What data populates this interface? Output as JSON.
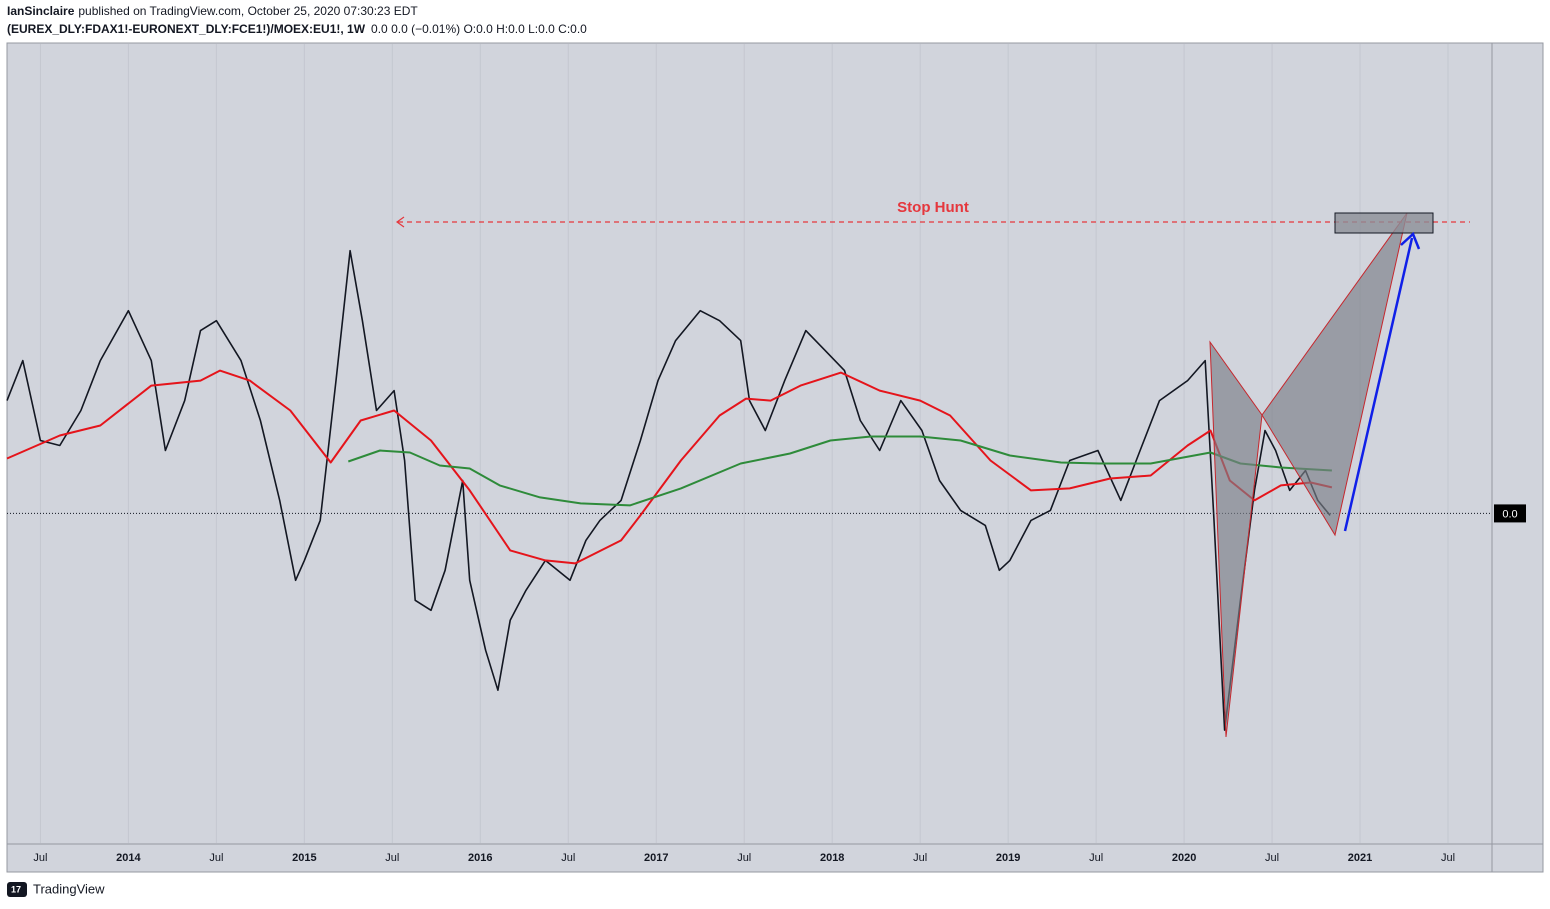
{
  "header": {
    "author": "IanSinclaire",
    "published": "published on TradingView.com, October 25, 2020 07:30:23 EDT",
    "symbol": "(EUREX_DLY:FDAX1!-EURONEXT_DLY:FCE1!)/MOEX:EU1!, 1W",
    "quote": "0.0 0.0 (−0.01%) O:0.0 H:0.0 L:0.0 C:0.0"
  },
  "footer": {
    "brand": "TradingView"
  },
  "chart_data": {
    "type": "line",
    "annotation": "Stop Hunt",
    "xlim": [
      2013.31,
      2021.75
    ],
    "xticks": [
      {
        "value": 2013.5,
        "label": "Jul"
      },
      2014,
      {
        "value": 2014.5,
        "label": "Jul"
      },
      2015,
      {
        "value": 2015.5,
        "label": "Jul"
      },
      2016,
      {
        "value": 2016.5,
        "label": "Jul"
      },
      2017,
      {
        "value": 2017.5,
        "label": "Jul"
      },
      2018,
      {
        "value": 2018.5,
        "label": "Jul"
      },
      2019,
      {
        "value": 2019.5,
        "label": "Jul"
      },
      2020,
      {
        "value": 2020.5,
        "label": "Jul"
      },
      2021,
      {
        "value": 2021.5,
        "label": "Jul"
      }
    ],
    "ylim": [
      -0.0165,
      0.0235
    ],
    "yticks": [
      {
        "value": 0,
        "label": "0.0"
      }
    ],
    "xgrid": true,
    "series": [
      {
        "color": "#131722",
        "width": 1.6,
        "x": [
          2013.31,
          2013.4,
          2013.5,
          2013.61,
          2013.73,
          2013.84,
          2014.0,
          2014.13,
          2014.21,
          2014.32,
          2014.41,
          2014.5,
          2014.64,
          2014.75,
          2014.86,
          2014.95,
          2015.0,
          2015.09,
          2015.18,
          2015.26,
          2015.33,
          2015.41,
          2015.51,
          2015.57,
          2015.63,
          2015.72,
          2015.8,
          2015.9,
          2015.94,
          2016.03,
          2016.1,
          2016.17,
          2016.26,
          2016.37,
          2016.51,
          2016.6,
          2016.68,
          2016.8,
          2016.91,
          2017.01,
          2017.11,
          2017.25,
          2017.36,
          2017.48,
          2017.53,
          2017.62,
          2017.73,
          2017.85,
          2017.96,
          2018.07,
          2018.16,
          2018.27,
          2018.39,
          2018.51,
          2018.61,
          2018.73,
          2018.87,
          2018.95,
          2019.01,
          2019.13,
          2019.24,
          2019.35,
          2019.51,
          2019.64,
          2019.75,
          2019.86,
          2020.02,
          2020.12,
          2020.17,
          2020.23,
          2020.32,
          2020.4,
          2020.46,
          2020.52,
          2020.6,
          2020.69,
          2020.76,
          2020.83
        ],
        "values": [
          0.00565,
          0.00765,
          0.00365,
          0.0034,
          0.00515,
          0.00765,
          0.01015,
          0.00765,
          0.00315,
          0.00565,
          0.00915,
          0.00965,
          0.00765,
          0.00465,
          0.00065,
          -0.00335,
          -0.00235,
          -0.00035,
          0.00665,
          0.01315,
          0.00965,
          0.00515,
          0.00615,
          0.00265,
          -0.00435,
          -0.00485,
          -0.00285,
          0.00165,
          -0.00335,
          -0.00685,
          -0.00885,
          -0.00535,
          -0.00385,
          -0.00235,
          -0.00335,
          -0.00135,
          -0.00035,
          0.00065,
          0.00365,
          0.00665,
          0.00865,
          0.01015,
          0.00965,
          0.00865,
          0.00565,
          0.00415,
          0.00665,
          0.00915,
          0.00815,
          0.00715,
          0.00465,
          0.00315,
          0.00565,
          0.00415,
          0.00165,
          0.00015,
          -0.0006,
          -0.00285,
          -0.00235,
          -0.00035,
          0.00015,
          0.00265,
          0.00315,
          0.00065,
          0.00315,
          0.00565,
          0.00665,
          0.00765,
          -0.00035,
          -0.01085,
          -0.00435,
          0.00115,
          0.00415,
          0.00315,
          0.00115,
          0.00215,
          0.00065,
          -0.0001
        ]
      },
      {
        "color": "#e5141b",
        "width": 2,
        "x": [
          2013.31,
          2013.61,
          2013.84,
          2014.13,
          2014.41,
          2014.52,
          2014.69,
          2014.92,
          2015.15,
          2015.32,
          2015.51,
          2015.72,
          2015.94,
          2016.17,
          2016.37,
          2016.54,
          2016.8,
          2016.91,
          2017.14,
          2017.36,
          2017.51,
          2017.65,
          2017.82,
          2018.05,
          2018.27,
          2018.5,
          2018.67,
          2018.9,
          2019.13,
          2019.35,
          2019.58,
          2019.81,
          2020.02,
          2020.15,
          2020.26,
          2020.4,
          2020.55,
          2020.72,
          2020.84
        ],
        "values": [
          0.00275,
          0.0039,
          0.0044,
          0.0064,
          0.00665,
          0.00715,
          0.00665,
          0.00515,
          0.00255,
          0.00465,
          0.00515,
          0.00365,
          0.00115,
          -0.00185,
          -0.00235,
          -0.0025,
          -0.00135,
          -0.0001,
          0.00265,
          0.0049,
          0.00575,
          0.00565,
          0.0064,
          0.00705,
          0.00615,
          0.00565,
          0.0049,
          0.00265,
          0.00115,
          0.00125,
          0.00175,
          0.0019,
          0.0034,
          0.00415,
          0.00165,
          0.00065,
          0.0014,
          0.00155,
          0.0013
        ]
      },
      {
        "color": "#2e8b3a",
        "width": 2,
        "x": [
          2015.25,
          2015.43,
          2015.6,
          2015.77,
          2015.94,
          2016.11,
          2016.34,
          2016.57,
          2016.85,
          2017.14,
          2017.48,
          2017.76,
          2017.99,
          2018.22,
          2018.5,
          2018.73,
          2019.01,
          2019.3,
          2019.52,
          2019.81,
          2020.15,
          2020.32,
          2020.55,
          2020.84
        ],
        "values": [
          0.0026,
          0.00315,
          0.00305,
          0.0024,
          0.00225,
          0.0014,
          0.0008,
          0.0005,
          0.0004,
          0.00125,
          0.0025,
          0.003,
          0.00365,
          0.00385,
          0.00385,
          0.00365,
          0.0029,
          0.00255,
          0.0025,
          0.0025,
          0.00305,
          0.0025,
          0.0023,
          0.00215
        ]
      }
    ]
  }
}
